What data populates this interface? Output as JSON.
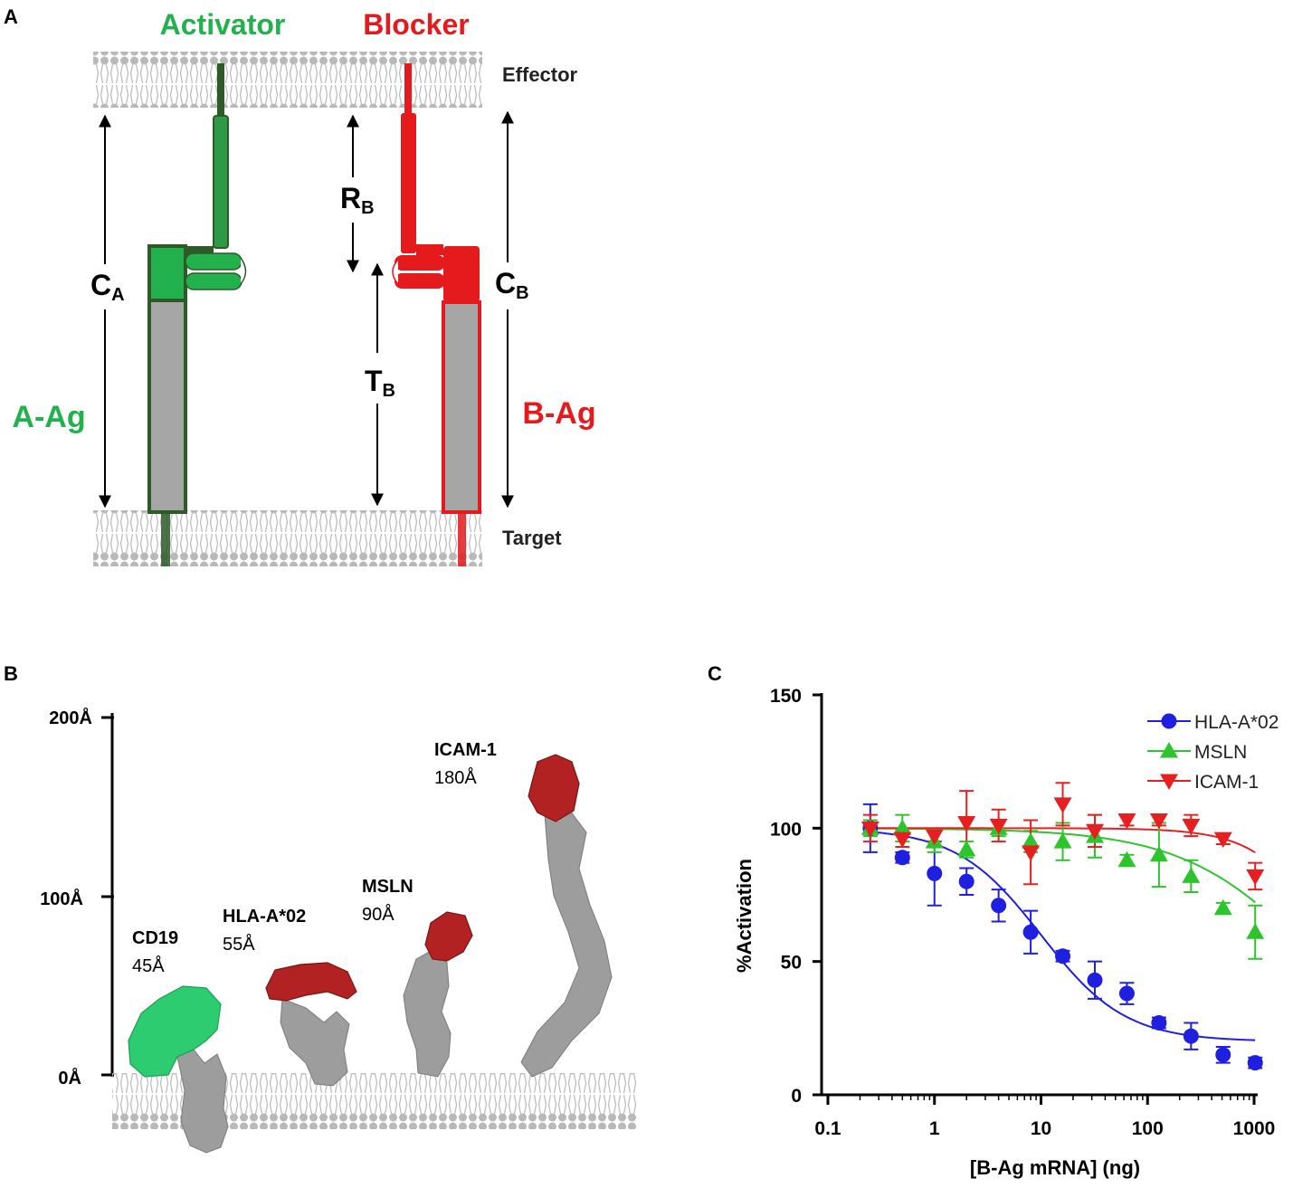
{
  "panels": {
    "a": {
      "letter": "A"
    },
    "b": {
      "letter": "B"
    },
    "c": {
      "letter": "C"
    }
  },
  "panel_a": {
    "activator_label": "Activator",
    "blocker_label": "Blocker",
    "effector_label": "Effector",
    "target_label": "Target",
    "a_ag_label": "A-Ag",
    "b_ag_label": "B-Ag",
    "ca_main": "C",
    "ca_sub": "A",
    "rb_main": "R",
    "rb_sub": "B",
    "tb_main": "T",
    "tb_sub": "B",
    "cb_main": "C",
    "cb_sub": "B",
    "colors": {
      "activator": "#22b14c",
      "activator_dark": "#2d5a27",
      "blocker": "#e41a1c",
      "antigen": "#a6a6a6",
      "membrane": "#b8b8b8"
    }
  },
  "panel_b": {
    "axis_ticks": [
      "200Å",
      "100Å",
      "0Å"
    ],
    "proteins": [
      {
        "name": "CD19",
        "size": "45Å"
      },
      {
        "name": "HLA-A*02",
        "size": "55Å"
      },
      {
        "name": "MSLN",
        "size": "90Å"
      },
      {
        "name": "ICAM-1",
        "size": "180Å"
      }
    ],
    "colors": {
      "cd19": "#2ecc71",
      "epitope": "#b22222",
      "body": "#a0a0a0"
    }
  },
  "chart_data": {
    "type": "scatter",
    "title": "",
    "xlabel": "[B-Ag mRNA] (ng)",
    "ylabel": "%Activation",
    "xscale": "log",
    "xlim": [
      0.1,
      1000
    ],
    "ylim": [
      0,
      150
    ],
    "xticks": [
      0.1,
      1,
      10,
      100,
      1000
    ],
    "xtick_labels": [
      "0.1",
      "1",
      "10",
      "100",
      "1000"
    ],
    "yticks": [
      0,
      50,
      100,
      150
    ],
    "ytick_labels": [
      "0",
      "50",
      "100",
      "150"
    ],
    "legend_position": "top-right",
    "series": [
      {
        "name": "HLA-A*02",
        "color": "#1f1fe0",
        "marker": "circle",
        "x": [
          0.25,
          0.5,
          1,
          2,
          4,
          8,
          16,
          32,
          64,
          128,
          256,
          512,
          1024
        ],
        "y": [
          100,
          89,
          83,
          80,
          71,
          61,
          52,
          43,
          38,
          27,
          22,
          15,
          12
        ],
        "err": [
          9,
          2,
          12,
          5,
          6,
          8,
          2,
          7,
          4,
          2,
          5,
          3,
          2
        ],
        "fit": {
          "top": 100,
          "bottom": 20,
          "ec50": 10,
          "hill": 1.1
        }
      },
      {
        "name": "MSLN",
        "color": "#2ec42e",
        "marker": "triangle-up",
        "x": [
          0.25,
          0.5,
          1,
          2,
          4,
          8,
          16,
          32,
          64,
          128,
          256,
          512,
          1024
        ],
        "y": [
          100,
          100,
          95,
          92,
          100,
          95,
          95,
          97,
          88,
          90,
          82,
          70,
          61
        ],
        "err": [
          3,
          5,
          4,
          3,
          3,
          4,
          7,
          8,
          2,
          12,
          6,
          2,
          10
        ],
        "fit": {
          "top": 100,
          "bottom": 0,
          "ec50": 4000,
          "hill": 0.7
        }
      },
      {
        "name": "ICAM-1",
        "color": "#e62020",
        "marker": "triangle-down",
        "x": [
          0.25,
          0.5,
          1,
          2,
          4,
          8,
          16,
          32,
          64,
          128,
          256,
          512,
          1024
        ],
        "y": [
          100,
          96,
          97,
          102,
          101,
          91,
          109,
          99,
          103,
          103,
          101,
          96,
          82
        ],
        "err": [
          5,
          3,
          2,
          12,
          6,
          12,
          8,
          6,
          2,
          2,
          4,
          2,
          5
        ],
        "fit": {
          "top": 100,
          "bottom": 0,
          "ec50": 6000,
          "hill": 1.3
        }
      }
    ]
  }
}
